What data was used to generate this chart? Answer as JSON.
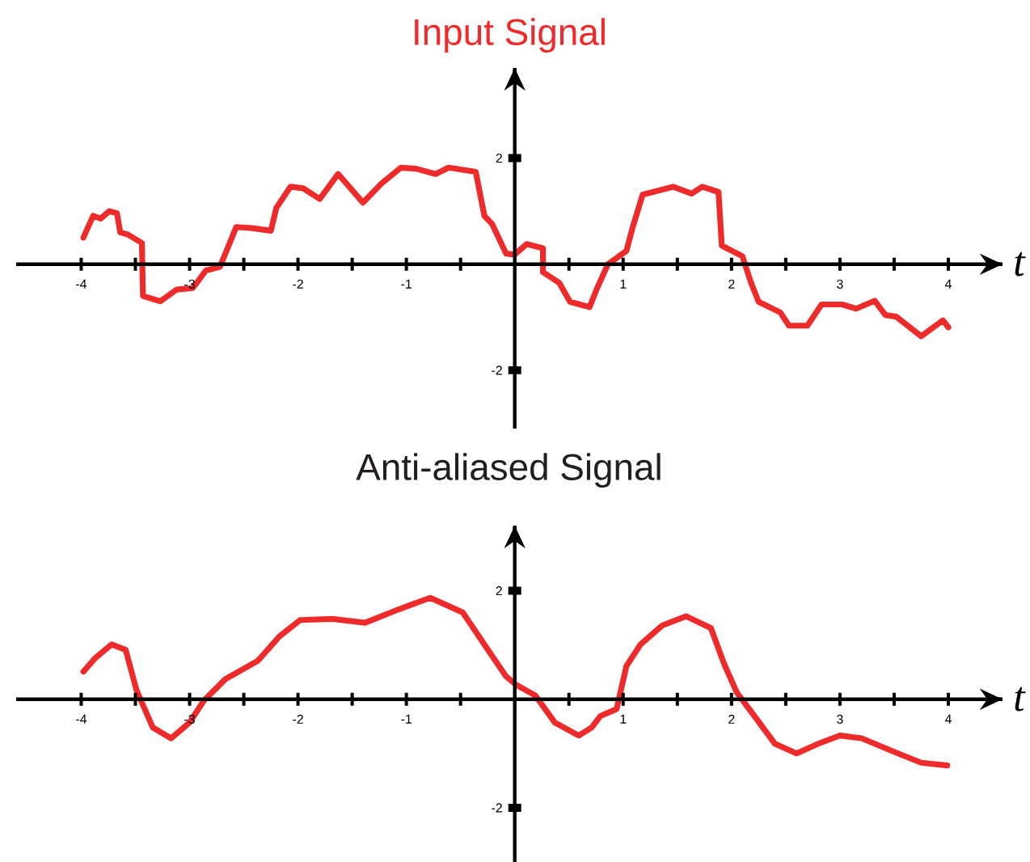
{
  "chart_data": [
    {
      "type": "line",
      "title": "Input Signal",
      "xlabel": "t",
      "color": "#ee2a2b",
      "x": [
        -3.98,
        -3.89,
        -3.82,
        -3.74,
        -3.67,
        -3.64,
        -3.57,
        -3.44,
        -3.43,
        -3.27,
        -3.12,
        -2.97,
        -2.85,
        -2.72,
        -2.57,
        -2.42,
        -2.25,
        -2.2,
        -2.07,
        -1.95,
        -1.8,
        -1.63,
        -1.4,
        -1.23,
        -1.05,
        -0.91,
        -0.73,
        -0.61,
        -0.36,
        -0.28,
        -0.21,
        -0.08,
        0.0,
        0.11,
        0.26,
        0.26,
        0.41,
        0.51,
        0.69,
        0.76,
        0.86,
        1.03,
        1.09,
        1.18,
        1.46,
        1.63,
        1.73,
        1.88,
        1.91,
        2.1,
        2.18,
        2.25,
        2.45,
        2.53,
        2.7,
        2.83,
        3.02,
        3.15,
        3.32,
        3.42,
        3.52,
        3.75,
        3.95,
        4.0
      ],
      "values": [
        0.5,
        0.91,
        0.86,
        1.0,
        0.96,
        0.6,
        0.56,
        0.4,
        -0.6,
        -0.7,
        -0.48,
        -0.45,
        -0.12,
        -0.05,
        0.7,
        0.68,
        0.63,
        1.06,
        1.46,
        1.43,
        1.23,
        1.7,
        1.16,
        1.52,
        1.82,
        1.8,
        1.7,
        1.82,
        1.74,
        0.91,
        0.76,
        0.2,
        0.18,
        0.38,
        0.3,
        -0.15,
        -0.35,
        -0.71,
        -0.81,
        -0.45,
        0.0,
        0.25,
        0.71,
        1.31,
        1.46,
        1.33,
        1.46,
        1.36,
        0.35,
        0.15,
        -0.35,
        -0.71,
        -0.91,
        -1.16,
        -1.16,
        -0.76,
        -0.76,
        -0.84,
        -0.69,
        -0.96,
        -0.99,
        -1.36,
        -1.06,
        -1.19
      ],
      "xlim": [
        -4.6,
        4.5
      ],
      "ylim": [
        -3.1,
        3.7
      ],
      "xticks": [
        -4,
        {
          "value": -3.5,
          "label": null
        },
        -3,
        {
          "value": -2.5,
          "label": null
        },
        -2,
        {
          "value": -1.5,
          "label": null
        },
        -1,
        {
          "value": -0.5,
          "label": null
        },
        {
          "value": 0.5,
          "label": null
        },
        1,
        {
          "value": 1.5,
          "label": null
        },
        2,
        {
          "value": 2.5,
          "label": null
        },
        3,
        {
          "value": 3.5,
          "label": null
        },
        4
      ],
      "yticks": [
        -2,
        2
      ]
    },
    {
      "type": "line",
      "title": "Anti-aliased Signal",
      "xlabel": "t",
      "color": "#ee2a2b",
      "x": [
        -3.98,
        -3.87,
        -3.72,
        -3.59,
        -3.49,
        -3.34,
        -3.17,
        -3.0,
        -2.87,
        -2.67,
        -2.37,
        -2.17,
        -1.98,
        -1.68,
        -1.38,
        -1.08,
        -0.78,
        -0.48,
        -0.23,
        -0.08,
        0.01,
        0.19,
        0.37,
        0.59,
        0.71,
        0.79,
        0.94,
        1.03,
        1.16,
        1.36,
        1.58,
        1.81,
        1.93,
        2.05,
        2.2,
        2.4,
        2.6,
        2.8,
        3.0,
        3.2,
        3.5,
        3.75,
        3.99
      ],
      "values": [
        0.51,
        0.76,
        1.01,
        0.91,
        0.17,
        -0.52,
        -0.72,
        -0.43,
        -0.03,
        0.37,
        0.71,
        1.16,
        1.46,
        1.48,
        1.41,
        1.65,
        1.87,
        1.6,
        0.86,
        0.42,
        0.27,
        0.07,
        -0.43,
        -0.67,
        -0.52,
        -0.31,
        -0.18,
        0.61,
        1.01,
        1.36,
        1.53,
        1.31,
        0.66,
        0.12,
        -0.28,
        -0.82,
        -1.0,
        -0.82,
        -0.67,
        -0.72,
        -0.97,
        -1.17,
        -1.22
      ],
      "xlim": [
        -4.6,
        4.5
      ],
      "ylim": [
        -3.0,
        3.2
      ],
      "xticks": [
        -4,
        {
          "value": -3.5,
          "label": null
        },
        -3,
        {
          "value": -2.5,
          "label": null
        },
        -2,
        {
          "value": -1.5,
          "label": null
        },
        -1,
        {
          "value": -0.5,
          "label": null
        },
        {
          "value": 0.5,
          "label": null
        },
        1,
        {
          "value": 1.5,
          "label": null
        },
        2,
        {
          "value": 2.5,
          "label": null
        },
        3,
        {
          "value": 3.5,
          "label": null
        },
        4
      ],
      "yticks": [
        -2,
        2
      ]
    }
  ]
}
